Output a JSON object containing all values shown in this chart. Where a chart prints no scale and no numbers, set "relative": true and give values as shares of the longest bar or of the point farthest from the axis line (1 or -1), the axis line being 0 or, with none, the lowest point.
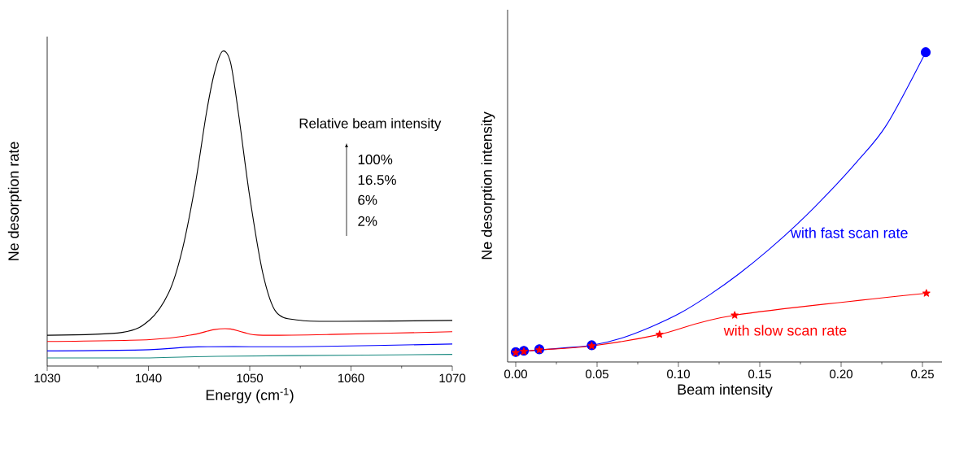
{
  "chart_data": [
    {
      "type": "line",
      "xlabel": "Energy (cm$^{-1}$)",
      "ylabel": "Ne desorption rate",
      "relative": true,
      "xlim": [
        1030,
        1070
      ],
      "xticks": [
        1030,
        1040,
        1050,
        1060,
        1070
      ],
      "annotations": [
        "Relative beam intensity",
        "100%",
        "16.5%",
        "6%",
        "2%"
      ],
      "series": [
        {
          "color": "#000000",
          "x": [
            1030,
            1037.4,
            1040.1,
            1042.0,
            1043.3,
            1044.6,
            1045.7,
            1046.5,
            1047.3,
            1048.1,
            1048.9,
            1050.0,
            1051.3,
            1052.6,
            1054.8,
            1058.8,
            1070
          ],
          "values": [
            0.098,
            0.107,
            0.146,
            0.233,
            0.364,
            0.573,
            0.8,
            0.93,
            1.0,
            0.965,
            0.8,
            0.538,
            0.294,
            0.172,
            0.146,
            0.142,
            0.145
          ]
        },
        {
          "color": "#ff0000",
          "x": [
            1030,
            1040.1,
            1044.1,
            1046.5,
            1048.1,
            1049.4,
            1051.3,
            1058.8,
            1070
          ],
          "values": [
            0.078,
            0.084,
            0.098,
            0.116,
            0.118,
            0.107,
            0.098,
            0.101,
            0.109
          ]
        },
        {
          "color": "#0000ff",
          "x": [
            1030,
            1040.1,
            1044.9,
            1056.1,
            1070
          ],
          "values": [
            0.048,
            0.052,
            0.061,
            0.062,
            0.07
          ]
        },
        {
          "color": "#1a8a80",
          "x": [
            1030,
            1040.1,
            1046.8,
            1061.5,
            1070
          ],
          "values": [
            0.026,
            0.026,
            0.031,
            0.035,
            0.037
          ]
        }
      ]
    },
    {
      "type": "line",
      "xlabel": "Beam intensity",
      "ylabel": "Ne desorption intensity",
      "relative": true,
      "xlim": [
        -0.005,
        0.262
      ],
      "xticks": [
        {
          "value": 0,
          "label": "0.00"
        },
        {
          "value": 0.05,
          "label": "0.05"
        },
        {
          "value": 0.1,
          "label": "0.10"
        },
        {
          "value": 0.15,
          "label": "0.15"
        },
        {
          "value": 0.2,
          "label": "0.20"
        },
        {
          "value": 0.25,
          "label": "0.25"
        }
      ],
      "series": [
        {
          "type": "line",
          "name": "with fast scan rate",
          "color": "#0000ff",
          "x": [
            0,
            0.0286,
            0.0467,
            0.0649,
            0.083,
            0.1011,
            0.1192,
            0.1373,
            0.1554,
            0.1736,
            0.1917,
            0.2098,
            0.2279,
            0.252
          ],
          "values": [
            0.032,
            0.045,
            0.054,
            0.077,
            0.113,
            0.158,
            0.217,
            0.285,
            0.362,
            0.448,
            0.543,
            0.647,
            0.765,
            1.0
          ]
        },
        {
          "type": "scatter",
          "marker": "circle",
          "color": "#0000ff",
          "x": [
            0,
            0.005,
            0.0145,
            0.0467,
            0.252
          ],
          "values": [
            0.032,
            0.036,
            0.041,
            0.054,
            1.0
          ]
        },
        {
          "type": "line",
          "marker": "star",
          "name": "with slow scan rate",
          "color": "#ff0000",
          "x": [
            0,
            0.005,
            0.0145,
            0.0467,
            0.0884,
            0.1346,
            0.2524
          ],
          "values": [
            0.03,
            0.034,
            0.039,
            0.052,
            0.089,
            0.151,
            0.222
          ]
        }
      ]
    }
  ]
}
